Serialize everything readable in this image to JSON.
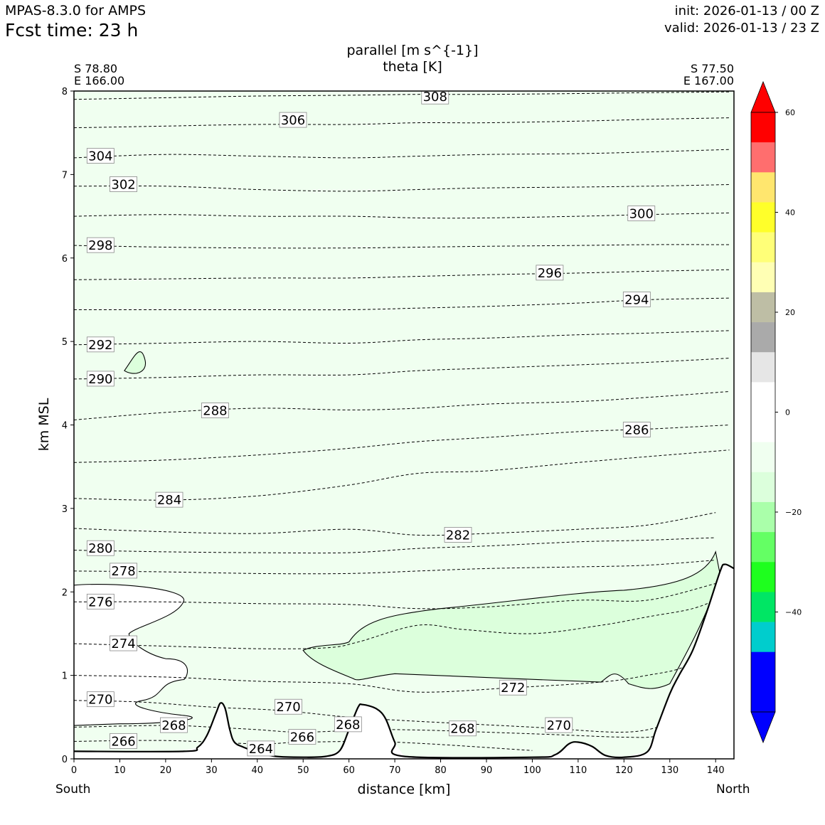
{
  "header": {
    "model": "MPAS-8.3.0 for AMPS",
    "forecast_time": "Fcst time:   23 h",
    "init": "init: 2026-01-13 / 00 Z",
    "valid": "valid: 2026-01-13 / 23 Z"
  },
  "endpoints": {
    "left_lat": "S 78.80",
    "left_lon": "E 166.00",
    "right_lat": "S 77.50",
    "right_lon": "E 167.00",
    "left_dir": "South",
    "right_dir": "North"
  },
  "chart_data": {
    "type": "contour",
    "title": "parallel [m s^{-1}]",
    "subtitle": "theta [K]",
    "xlabel": "distance [km]",
    "ylabel": "km MSL",
    "xlim": [
      0,
      144
    ],
    "ylim": [
      0,
      8
    ],
    "x_ticks": [
      0,
      10,
      20,
      30,
      40,
      50,
      60,
      70,
      80,
      90,
      100,
      110,
      120,
      130,
      140
    ],
    "y_ticks": [
      0,
      1,
      2,
      3,
      4,
      5,
      6,
      7,
      8
    ],
    "theta_levels": [
      264,
      266,
      268,
      270,
      272,
      274,
      276,
      278,
      280,
      282,
      284,
      286,
      288,
      290,
      292,
      294,
      296,
      298,
      300,
      302,
      304,
      306,
      308
    ],
    "theta_lines": [
      {
        "v": 266,
        "pts": [
          [
            0,
            0.21
          ],
          [
            20,
            0.22
          ],
          [
            40,
            0.18
          ],
          [
            50,
            0.2
          ],
          [
            70,
            0.2
          ],
          [
            100,
            0.1
          ]
        ]
      },
      {
        "v": 268,
        "pts": [
          [
            0,
            0.38
          ],
          [
            20,
            0.4
          ],
          [
            30,
            0.38
          ],
          [
            40,
            0.35
          ],
          [
            50,
            0.32
          ],
          [
            70,
            0.35
          ],
          [
            100,
            0.3
          ],
          [
            120,
            0.26
          ],
          [
            128,
            0.28
          ],
          [
            138,
            0.44
          ]
        ]
      },
      {
        "v": 270,
        "pts": [
          [
            0,
            0.7
          ],
          [
            15,
            0.68
          ],
          [
            30,
            0.62
          ],
          [
            45,
            0.58
          ],
          [
            60,
            0.5
          ],
          [
            75,
            0.45
          ],
          [
            100,
            0.38
          ],
          [
            120,
            0.32
          ],
          [
            130,
            0.42
          ],
          [
            140,
            0.6
          ]
        ]
      },
      {
        "v": 272,
        "pts": [
          [
            0,
            1.0
          ],
          [
            20,
            0.98
          ],
          [
            40,
            0.93
          ],
          [
            60,
            0.9
          ],
          [
            75,
            0.8
          ],
          [
            95,
            0.85
          ],
          [
            115,
            0.92
          ],
          [
            125,
            1.0
          ],
          [
            133,
            1.1
          ],
          [
            140,
            1.35
          ]
        ]
      },
      {
        "v": 274,
        "pts": [
          [
            0,
            1.38
          ],
          [
            20,
            1.35
          ],
          [
            40,
            1.32
          ],
          [
            55,
            1.33
          ],
          [
            62,
            1.4
          ],
          [
            75,
            1.6
          ],
          [
            85,
            1.55
          ],
          [
            100,
            1.5
          ],
          [
            115,
            1.6
          ],
          [
            125,
            1.7
          ],
          [
            135,
            1.8
          ],
          [
            142,
            1.95
          ]
        ]
      },
      {
        "v": 276,
        "pts": [
          [
            0,
            1.88
          ],
          [
            20,
            1.88
          ],
          [
            40,
            1.86
          ],
          [
            60,
            1.85
          ],
          [
            75,
            1.8
          ],
          [
            90,
            1.82
          ],
          [
            110,
            1.9
          ],
          [
            125,
            1.9
          ],
          [
            140,
            2.1
          ]
        ]
      },
      {
        "v": 278,
        "pts": [
          [
            0,
            2.25
          ],
          [
            20,
            2.24
          ],
          [
            40,
            2.22
          ],
          [
            60,
            2.22
          ],
          [
            75,
            2.25
          ],
          [
            90,
            2.28
          ],
          [
            110,
            2.3
          ],
          [
            125,
            2.32
          ],
          [
            140,
            2.38
          ]
        ]
      },
      {
        "v": 280,
        "pts": [
          [
            0,
            2.5
          ],
          [
            20,
            2.48
          ],
          [
            40,
            2.47
          ],
          [
            60,
            2.47
          ],
          [
            75,
            2.52
          ],
          [
            90,
            2.55
          ],
          [
            110,
            2.6
          ],
          [
            125,
            2.62
          ],
          [
            140,
            2.65
          ]
        ]
      },
      {
        "v": 282,
        "pts": [
          [
            0,
            2.76
          ],
          [
            20,
            2.72
          ],
          [
            40,
            2.7
          ],
          [
            60,
            2.75
          ],
          [
            75,
            2.68
          ],
          [
            90,
            2.7
          ],
          [
            110,
            2.75
          ],
          [
            125,
            2.8
          ],
          [
            140,
            2.95
          ]
        ]
      },
      {
        "v": 284,
        "pts": [
          [
            0,
            3.12
          ],
          [
            20,
            3.1
          ],
          [
            40,
            3.15
          ],
          [
            60,
            3.28
          ],
          [
            75,
            3.42
          ],
          [
            90,
            3.45
          ],
          [
            110,
            3.55
          ],
          [
            125,
            3.62
          ],
          [
            143,
            3.7
          ]
        ]
      },
      {
        "v": 286,
        "pts": [
          [
            0,
            3.55
          ],
          [
            20,
            3.58
          ],
          [
            40,
            3.64
          ],
          [
            60,
            3.72
          ],
          [
            75,
            3.8
          ],
          [
            90,
            3.85
          ],
          [
            110,
            3.92
          ],
          [
            125,
            3.95
          ],
          [
            143,
            4.0
          ]
        ]
      },
      {
        "v": 288,
        "pts": [
          [
            0,
            4.06
          ],
          [
            20,
            4.15
          ],
          [
            40,
            4.2
          ],
          [
            60,
            4.18
          ],
          [
            75,
            4.2
          ],
          [
            90,
            4.25
          ],
          [
            110,
            4.28
          ],
          [
            125,
            4.33
          ],
          [
            143,
            4.4
          ]
        ]
      },
      {
        "v": 290,
        "pts": [
          [
            0,
            4.55
          ],
          [
            20,
            4.57
          ],
          [
            40,
            4.6
          ],
          [
            60,
            4.6
          ],
          [
            75,
            4.65
          ],
          [
            90,
            4.68
          ],
          [
            110,
            4.72
          ],
          [
            125,
            4.75
          ],
          [
            143,
            4.8
          ]
        ]
      },
      {
        "v": 292,
        "pts": [
          [
            0,
            4.96
          ],
          [
            20,
            4.98
          ],
          [
            40,
            5.0
          ],
          [
            60,
            4.98
          ],
          [
            75,
            5.02
          ],
          [
            90,
            5.04
          ],
          [
            110,
            5.08
          ],
          [
            125,
            5.1
          ],
          [
            143,
            5.13
          ]
        ]
      },
      {
        "v": 294,
        "pts": [
          [
            0,
            5.38
          ],
          [
            20,
            5.38
          ],
          [
            40,
            5.38
          ],
          [
            60,
            5.38
          ],
          [
            75,
            5.4
          ],
          [
            90,
            5.42
          ],
          [
            110,
            5.46
          ],
          [
            125,
            5.5
          ],
          [
            143,
            5.52
          ]
        ]
      },
      {
        "v": 296,
        "pts": [
          [
            0,
            5.74
          ],
          [
            20,
            5.75
          ],
          [
            40,
            5.76
          ],
          [
            60,
            5.76
          ],
          [
            75,
            5.78
          ],
          [
            90,
            5.8
          ],
          [
            110,
            5.82
          ],
          [
            125,
            5.84
          ],
          [
            143,
            5.86
          ]
        ]
      },
      {
        "v": 298,
        "pts": [
          [
            0,
            6.15
          ],
          [
            20,
            6.13
          ],
          [
            40,
            6.12
          ],
          [
            60,
            6.12
          ],
          [
            75,
            6.13
          ],
          [
            90,
            6.14
          ],
          [
            110,
            6.15
          ],
          [
            125,
            6.16
          ],
          [
            143,
            6.16
          ]
        ]
      },
      {
        "v": 300,
        "pts": [
          [
            0,
            6.5
          ],
          [
            20,
            6.52
          ],
          [
            40,
            6.5
          ],
          [
            60,
            6.5
          ],
          [
            75,
            6.48
          ],
          [
            90,
            6.48
          ],
          [
            110,
            6.5
          ],
          [
            125,
            6.52
          ],
          [
            143,
            6.54
          ]
        ]
      },
      {
        "v": 302,
        "pts": [
          [
            0,
            6.86
          ],
          [
            20,
            6.86
          ],
          [
            40,
            6.82
          ],
          [
            60,
            6.8
          ],
          [
            75,
            6.82
          ],
          [
            90,
            6.84
          ],
          [
            110,
            6.85
          ],
          [
            125,
            6.86
          ],
          [
            143,
            6.88
          ]
        ]
      },
      {
        "v": 304,
        "pts": [
          [
            0,
            7.2
          ],
          [
            20,
            7.24
          ],
          [
            40,
            7.22
          ],
          [
            60,
            7.2
          ],
          [
            75,
            7.22
          ],
          [
            90,
            7.24
          ],
          [
            110,
            7.25
          ],
          [
            125,
            7.27
          ],
          [
            143,
            7.3
          ]
        ]
      },
      {
        "v": 306,
        "pts": [
          [
            0,
            7.56
          ],
          [
            20,
            7.58
          ],
          [
            40,
            7.6
          ],
          [
            60,
            7.6
          ],
          [
            75,
            7.62
          ],
          [
            90,
            7.62
          ],
          [
            110,
            7.64
          ],
          [
            125,
            7.66
          ],
          [
            143,
            7.68
          ]
        ]
      },
      {
        "v": 308,
        "pts": [
          [
            0,
            7.9
          ],
          [
            20,
            7.92
          ],
          [
            40,
            7.94
          ],
          [
            60,
            7.95
          ],
          [
            75,
            7.96
          ],
          [
            90,
            7.96
          ],
          [
            110,
            7.97
          ],
          [
            125,
            7.98
          ],
          [
            143,
            7.99
          ]
        ]
      }
    ],
    "contour_labels": [
      {
        "text": "308",
        "x": 76,
        "y": 7.93
      },
      {
        "text": "306",
        "x": 45,
        "y": 7.65
      },
      {
        "text": "304",
        "x": 3,
        "y": 7.22
      },
      {
        "text": "302",
        "x": 8,
        "y": 6.88
      },
      {
        "text": "300",
        "x": 121,
        "y": 6.53
      },
      {
        "text": "298",
        "x": 3,
        "y": 6.15
      },
      {
        "text": "296",
        "x": 101,
        "y": 5.82
      },
      {
        "text": "294",
        "x": 120,
        "y": 5.5
      },
      {
        "text": "292",
        "x": 3,
        "y": 4.96
      },
      {
        "text": "290",
        "x": 3,
        "y": 4.55
      },
      {
        "text": "288",
        "x": 28,
        "y": 4.17
      },
      {
        "text": "286",
        "x": 120,
        "y": 3.94
      },
      {
        "text": "284",
        "x": 18,
        "y": 3.1
      },
      {
        "text": "282",
        "x": 81,
        "y": 2.68
      },
      {
        "text": "280",
        "x": 3,
        "y": 2.52
      },
      {
        "text": "278",
        "x": 8,
        "y": 2.25
      },
      {
        "text": "276",
        "x": 3,
        "y": 1.88
      },
      {
        "text": "274",
        "x": 8,
        "y": 1.38
      },
      {
        "text": "272",
        "x": 93,
        "y": 0.85
      },
      {
        "text": "270",
        "x": 3,
        "y": 0.71
      },
      {
        "text": "270",
        "x": 44,
        "y": 0.62
      },
      {
        "text": "270",
        "x": 103,
        "y": 0.4
      },
      {
        "text": "268",
        "x": 19,
        "y": 0.4
      },
      {
        "text": "268",
        "x": 57,
        "y": 0.41
      },
      {
        "text": "268",
        "x": 82,
        "y": 0.36
      },
      {
        "text": "266",
        "x": 8,
        "y": 0.21
      },
      {
        "text": "266",
        "x": 47,
        "y": 0.26
      },
      {
        "text": "264",
        "x": 38,
        "y": 0.12
      }
    ],
    "terrain": [
      [
        0,
        0.09
      ],
      [
        24,
        0.09
      ],
      [
        27,
        0.14
      ],
      [
        29,
        0.28
      ],
      [
        31,
        0.55
      ],
      [
        32,
        0.67
      ],
      [
        33,
        0.6
      ],
      [
        34,
        0.35
      ],
      [
        35,
        0.2
      ],
      [
        37,
        0.14
      ],
      [
        40,
        0.08
      ],
      [
        44,
        0.03
      ],
      [
        50,
        0.02
      ],
      [
        55,
        0.03
      ],
      [
        58,
        0.1
      ],
      [
        60,
        0.35
      ],
      [
        62,
        0.62
      ],
      [
        63,
        0.65
      ],
      [
        66,
        0.6
      ],
      [
        68,
        0.48
      ],
      [
        70,
        0.2
      ],
      [
        72,
        0.03
      ],
      [
        100,
        0.02
      ],
      [
        105,
        0.05
      ],
      [
        108,
        0.18
      ],
      [
        110,
        0.2
      ],
      [
        113,
        0.15
      ],
      [
        116,
        0.04
      ],
      [
        120,
        0.02
      ],
      [
        125,
        0.08
      ],
      [
        127,
        0.35
      ],
      [
        130,
        0.78
      ],
      [
        132,
        1.0
      ],
      [
        135,
        1.3
      ],
      [
        138,
        1.75
      ],
      [
        141,
        2.25
      ],
      [
        142,
        2.33
      ],
      [
        144,
        2.28
      ]
    ],
    "colorbar": {
      "ticks": [
        60,
        40,
        20,
        0,
        -20,
        -40
      ],
      "colors": [
        "#ff0000",
        "#ff6e6e",
        "#ffe66e",
        "#ffff2a",
        "#ffff78",
        "#ffffb4",
        "#bebea5",
        "#aaaaaa",
        "#e6e6e6",
        "#ffffff",
        "#ffffff",
        "#f0fff0",
        "#dcffdc",
        "#aaffaa",
        "#64ff64",
        "#1eff1e",
        "#00e664",
        "#00cdcd",
        "#0000ff",
        "#0000ff"
      ],
      "over_color": "#ff0000",
      "under_color": "#0000ff"
    }
  }
}
